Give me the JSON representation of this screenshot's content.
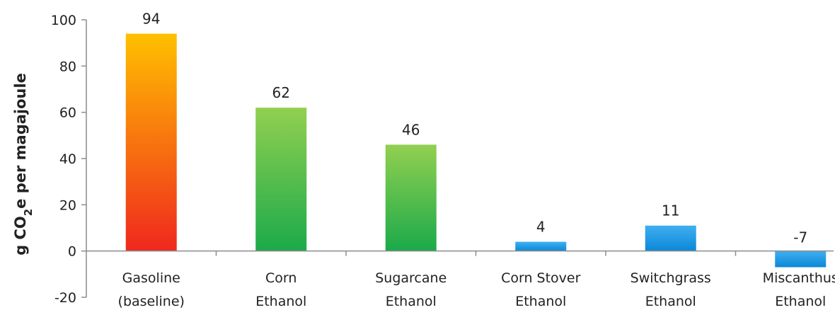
{
  "chart_data": {
    "type": "bar",
    "categories": [
      [
        "Gasoline",
        "(baseline)"
      ],
      [
        "Corn",
        "Ethanol"
      ],
      [
        "Sugarcane",
        "Ethanol"
      ],
      [
        "Corn Stover",
        "Ethanol"
      ],
      [
        "Switchgrass",
        "Ethanol"
      ],
      [
        "Miscanthus",
        "Ethanol"
      ]
    ],
    "values": [
      94,
      62,
      46,
      4,
      11,
      -7
    ],
    "data_labels": [
      "94",
      "62",
      "46",
      "4",
      "11",
      "-7"
    ],
    "ylabel": {
      "prefix": "g CO",
      "subscript": "2",
      "suffix": "e per magajoule"
    },
    "ylim": [
      -20,
      100
    ],
    "yticks": [
      -20,
      0,
      20,
      40,
      60,
      80,
      100
    ],
    "xlabel": "",
    "title": "",
    "grid": false,
    "legend": "none",
    "bar_fills": [
      "orange-red-gradient",
      "green-gradient",
      "green-gradient",
      "blue-gradient",
      "blue-gradient",
      "blue-gradient"
    ],
    "colors": {
      "gasoline_top": "#FFC000",
      "gasoline_bottom": "#F0281E",
      "ethanol_green_top": "#92D050",
      "ethanol_green_bottom": "#1BAA4A",
      "cellulosic_blue_top": "#3FB0F0",
      "cellulosic_blue_bottom": "#0B87D8",
      "axis": "#8C8C8C",
      "text": "#222222"
    }
  }
}
